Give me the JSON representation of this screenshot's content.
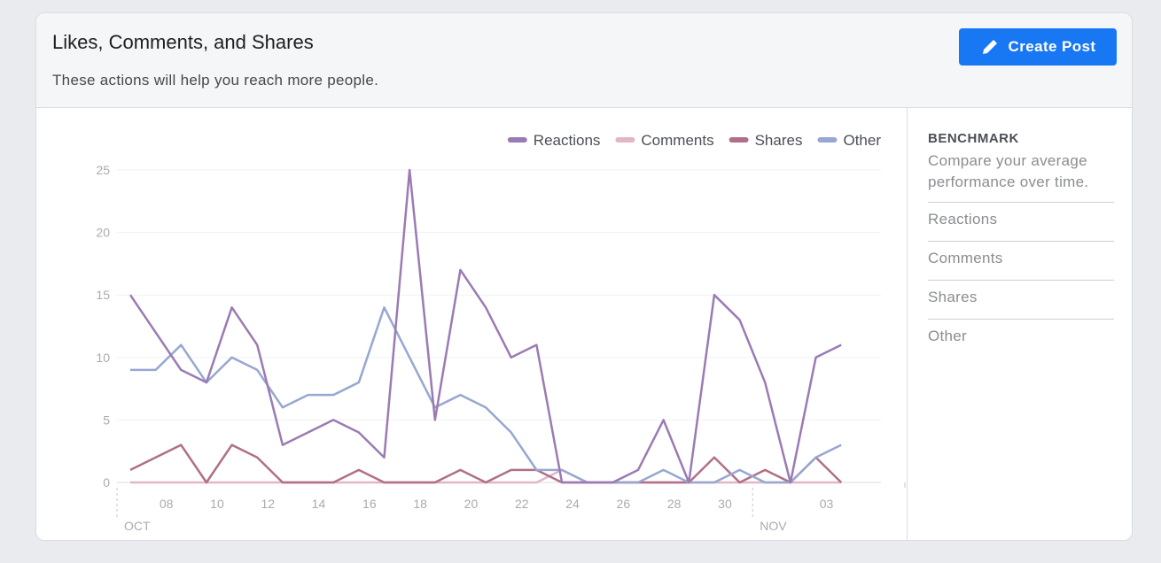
{
  "header": {
    "title": "Likes, Comments, and Shares",
    "subtitle": "These actions will help you reach more people."
  },
  "button": {
    "label": "Create Post"
  },
  "chart_data": {
    "type": "line",
    "categories": [
      null,
      "08",
      null,
      "10",
      null,
      "12",
      null,
      "14",
      null,
      "16",
      null,
      "18",
      null,
      "20",
      null,
      "22",
      null,
      "24",
      null,
      "26",
      null,
      "28",
      null,
      "30",
      null,
      null,
      null,
      "03",
      null
    ],
    "months": [
      "OCT",
      "NOV"
    ],
    "series": [
      {
        "name": "Reactions",
        "color": "#9a7bb4",
        "values": [
          15,
          12,
          9,
          8,
          14,
          11,
          3,
          4,
          5,
          4,
          2,
          25,
          5,
          17,
          14,
          10,
          11,
          0,
          0,
          0,
          1,
          5,
          0,
          15,
          13,
          8,
          0,
          10,
          11
        ]
      },
      {
        "name": "Comments",
        "color": "#e2b6c6",
        "values": [
          0,
          0,
          0,
          0,
          0,
          0,
          0,
          0,
          0,
          0,
          0,
          0,
          0,
          0,
          0,
          0,
          0,
          1,
          0,
          0,
          0,
          0,
          0,
          0,
          0,
          0,
          0,
          0,
          0
        ]
      },
      {
        "name": "Shares",
        "color": "#b06f89",
        "values": [
          1,
          2,
          3,
          0,
          3,
          2,
          0,
          0,
          0,
          1,
          0,
          0,
          0,
          1,
          0,
          1,
          1,
          0,
          0,
          0,
          0,
          0,
          0,
          2,
          0,
          1,
          0,
          2,
          0
        ]
      },
      {
        "name": "Other",
        "color": "#97a7d1",
        "values": [
          9,
          9,
          11,
          8,
          10,
          9,
          6,
          7,
          7,
          8,
          14,
          10,
          6,
          7,
          6,
          4,
          1,
          1,
          0,
          0,
          0,
          1,
          0,
          0,
          1,
          0,
          0,
          2,
          3
        ]
      }
    ],
    "ylim": [
      0,
      25
    ],
    "yticks": [
      0,
      5,
      10,
      15,
      20,
      25
    ],
    "grid": true,
    "legend": "top-right"
  },
  "benchmark": {
    "title": "BENCHMARK",
    "description": "Compare your average performance over time.",
    "items": [
      "Reactions",
      "Comments",
      "Shares",
      "Other"
    ]
  }
}
